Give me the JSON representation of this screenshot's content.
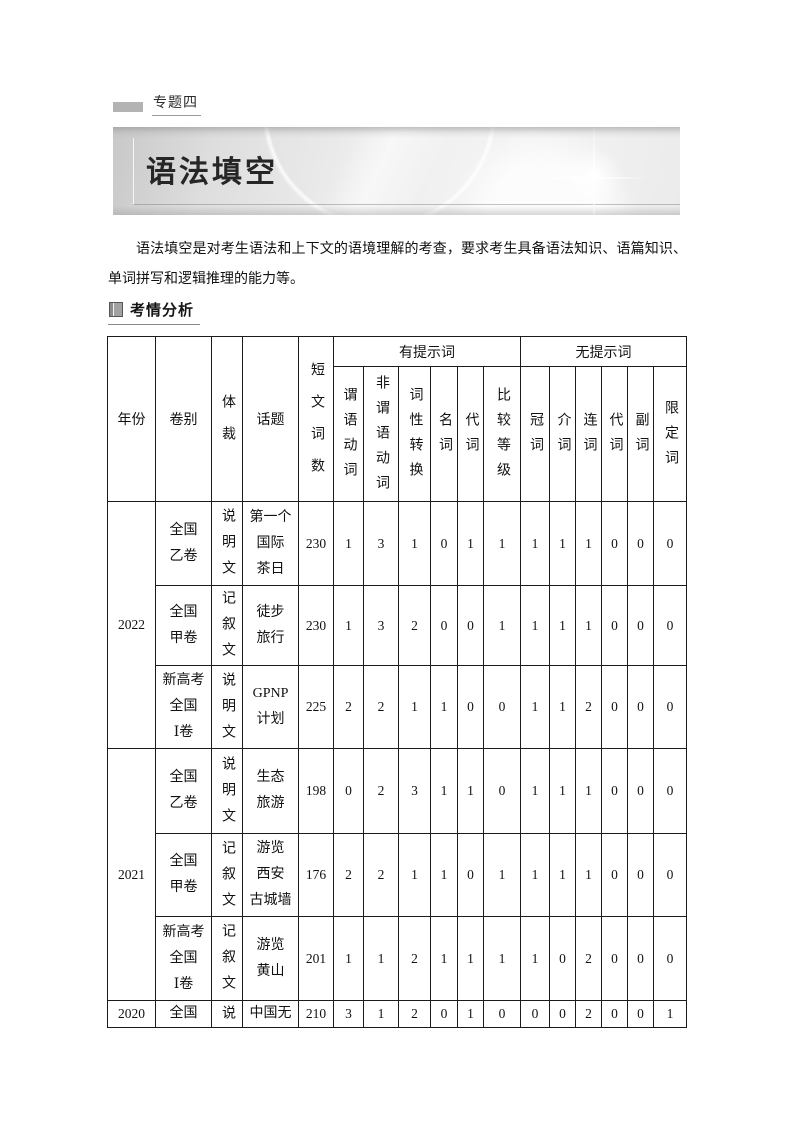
{
  "page": {
    "topic_tag": "专题四",
    "banner_title": "语法填空",
    "intro_paragraph": "语法填空是对考生语法和上下文的语境理解的考查，要求考生具备语法知识、语篇知识、单词拼写和逻辑推理的能力等。",
    "section_title": "考情分析"
  },
  "colors": {
    "banner_gray_dark": "#c8c8c8",
    "banner_gray_light": "#f4f4f4",
    "tag_chip_gray": "#b3b3b3",
    "table_border": "#1b1b1b",
    "text": "#1a1a1a"
  },
  "table": {
    "left_headers": [
      "年份",
      "卷别",
      "体裁",
      "话题",
      "短文词数"
    ],
    "groups": [
      {
        "label": "有提示词",
        "columns": [
          "谓语动词",
          "非谓语动词",
          "词性转换",
          "名词",
          "代词",
          "比较等级"
        ]
      },
      {
        "label": "无提示词",
        "columns": [
          "冠词",
          "介词",
          "连词",
          "代词",
          "副词",
          "限定词"
        ]
      }
    ],
    "rows": [
      {
        "year": "2022",
        "year_span": 3,
        "paper": "全国\n乙卷",
        "genre": "说明文",
        "topic": "第一个\n国际\n茶日",
        "word_count": "230",
        "values": [
          1,
          3,
          1,
          0,
          1,
          1,
          1,
          1,
          1,
          0,
          0,
          0
        ]
      },
      {
        "paper": "全国\n甲卷",
        "genre": "记叙文",
        "topic": "徒步\n旅行",
        "word_count": "230",
        "values": [
          1,
          3,
          2,
          0,
          0,
          1,
          1,
          1,
          1,
          0,
          0,
          0
        ]
      },
      {
        "paper": "新高考\n全国\nⅠ卷",
        "genre": "说明文",
        "topic": "GPNP\n计划",
        "word_count": "225",
        "values": [
          2,
          2,
          1,
          1,
          0,
          0,
          1,
          1,
          2,
          0,
          0,
          0
        ]
      },
      {
        "year": "2021",
        "year_span": 3,
        "paper": "全国\n乙卷",
        "genre": "说明文",
        "topic": "生态\n旅游",
        "word_count": "198",
        "values": [
          0,
          2,
          3,
          1,
          1,
          0,
          1,
          1,
          1,
          0,
          0,
          0
        ]
      },
      {
        "paper": "全国\n甲卷",
        "genre": "记叙文",
        "topic": "游览\n西安\n古城墙",
        "word_count": "176",
        "values": [
          2,
          2,
          1,
          1,
          0,
          1,
          1,
          1,
          1,
          0,
          0,
          0
        ]
      },
      {
        "paper": "新高考\n全国\nⅠ卷",
        "genre": "记叙文",
        "topic": "游览\n黄山",
        "word_count": "201",
        "values": [
          1,
          1,
          2,
          1,
          1,
          1,
          1,
          0,
          2,
          0,
          0,
          0
        ]
      },
      {
        "year": "2020",
        "year_span": 1,
        "paper": "全国",
        "genre": "说",
        "topic": "中国无",
        "word_count": "210",
        "values": [
          3,
          1,
          2,
          0,
          1,
          0,
          0,
          0,
          2,
          0,
          0,
          1
        ]
      }
    ]
  }
}
